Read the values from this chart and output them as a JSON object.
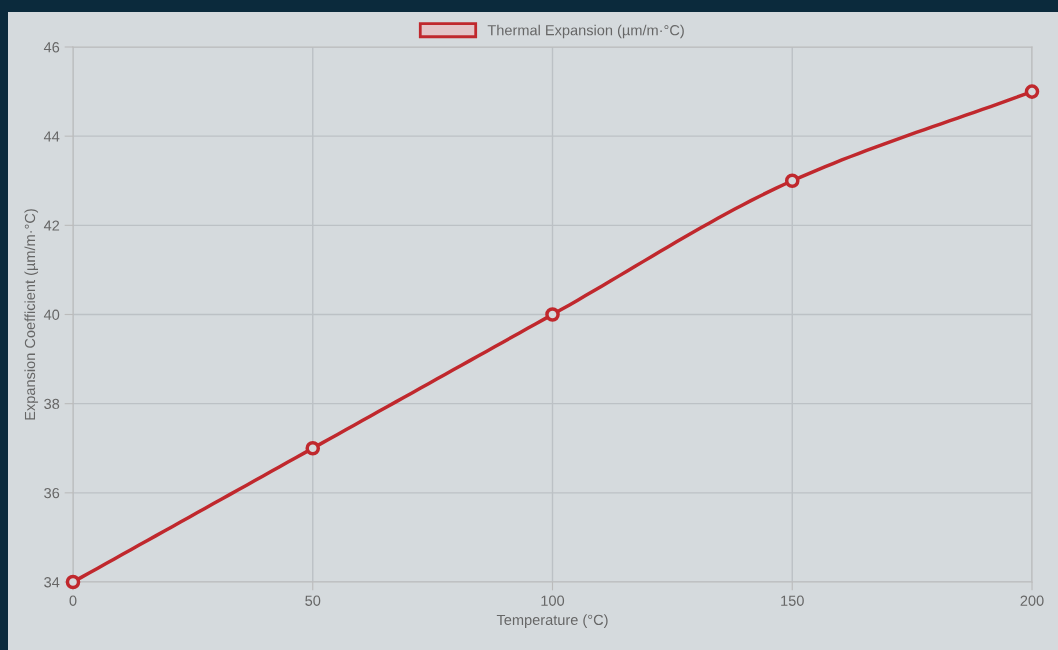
{
  "chart_data": {
    "type": "line",
    "xlabel": "Temperature (°C)",
    "ylabel": "Expansion Coefficient (µm/m·°C)",
    "x": [
      0,
      50,
      100,
      150,
      200
    ],
    "series": [
      {
        "name": "Thermal Expansion (µm/m·°C)",
        "color": "#c0282d",
        "values": [
          34,
          37,
          40,
          43,
          45
        ]
      }
    ],
    "xlim": [
      0,
      200
    ],
    "xticks": [
      0,
      50,
      100,
      150,
      200
    ],
    "ylim": [
      34,
      46
    ],
    "yticks": [
      34,
      36,
      38,
      40,
      42,
      44,
      46
    ],
    "grid": true,
    "legend": "top",
    "marker": "circle",
    "line_style": "solid"
  }
}
